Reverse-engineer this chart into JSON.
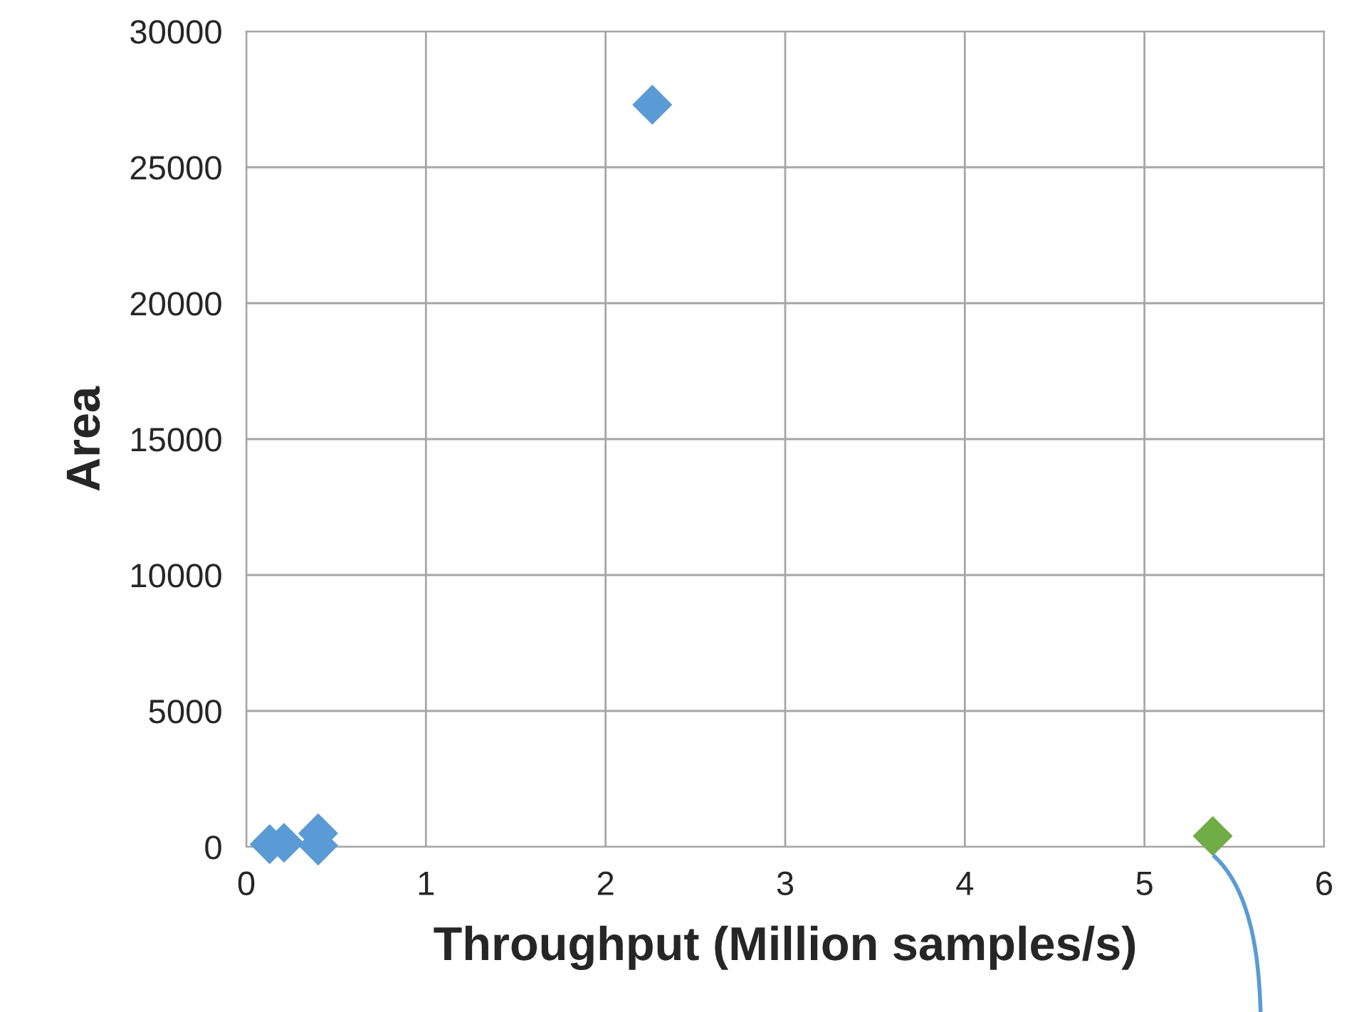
{
  "chart_data": {
    "type": "scatter",
    "xlabel": "Throughput (Million samples/s)",
    "ylabel": "Area",
    "series": [
      {
        "color": "#5b9bd5",
        "x": [
          0.13,
          0.21,
          0.4,
          0.4,
          2.26
        ],
        "values": [
          100,
          150,
          500,
          50,
          27300
        ]
      },
      {
        "color": "#70ad47",
        "x": [
          5.38
        ],
        "values": [
          400
        ]
      }
    ],
    "xlim": [
      0,
      6
    ],
    "ylim": [
      0,
      30000
    ],
    "xticks": [
      0,
      1,
      2,
      3,
      4,
      5,
      6
    ],
    "yticks": [
      0,
      5000,
      10000,
      15000,
      20000,
      25000,
      30000
    ],
    "grid": true,
    "marker": "diamond"
  }
}
